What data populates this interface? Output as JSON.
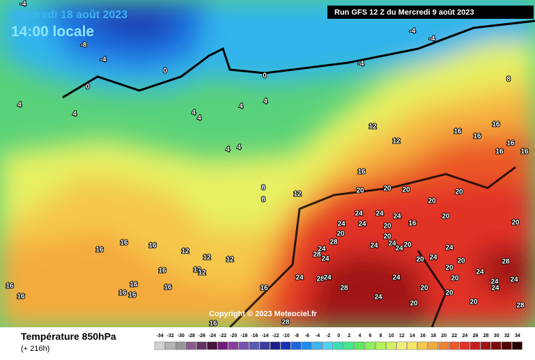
{
  "header": {
    "date": "Vendredi 18 août 2023",
    "time": "14:00 locale",
    "run": "Run GFS 12 Z du Mercredi 9 août 2023"
  },
  "copyright": "Copyright © 2023 Meteociel.fr",
  "legend": {
    "title": "Température 850hPa",
    "subtitle": "(+ 216h)",
    "ticks": [
      "-34",
      "-32",
      "-30",
      "-28",
      "-26",
      "-24",
      "-22",
      "-20",
      "-18",
      "-16",
      "-14",
      "-12",
      "-10",
      "-8",
      "-6",
      "-4",
      "-2",
      "0",
      "2",
      "4",
      "6",
      "8",
      "10",
      "12",
      "14",
      "16",
      "18",
      "20",
      "22",
      "24",
      "26",
      "28",
      "30",
      "32",
      "34"
    ],
    "colors": [
      "#d2d2d2",
      "#b4b4b4",
      "#969696",
      "#8c5a8c",
      "#643264",
      "#46143c",
      "#6e1e78",
      "#8c3c9c",
      "#7850b4",
      "#5a5ab4",
      "#3c3ca0",
      "#1e1e8c",
      "#1432b4",
      "#1e64dc",
      "#1e8cf0",
      "#3cb4f5",
      "#50d2f0",
      "#3cdcb4",
      "#46e68c",
      "#5aeb5a",
      "#8cf05a",
      "#b4f05a",
      "#d2f064",
      "#f0f078",
      "#f5e664",
      "#f5c84b",
      "#f5aa3c",
      "#f08232",
      "#eb5a28",
      "#e13228",
      "#c81e1e",
      "#a01414",
      "#780a0a",
      "#500505",
      "#280000"
    ]
  },
  "map": {
    "labels": [
      "-4",
      "-8",
      "-4",
      "0",
      "0",
      "0",
      "-4",
      "-4",
      "-4",
      "8",
      "4",
      "4",
      "4",
      "4",
      "4",
      "4",
      "4",
      "4",
      "8",
      "8",
      "12",
      "12",
      "12",
      "16",
      "16",
      "16",
      "16",
      "16",
      "16",
      "16",
      "20",
      "20",
      "20",
      "20",
      "20",
      "24",
      "24",
      "24",
      "24",
      "24",
      "20",
      "16",
      "20",
      "20",
      "20",
      "20",
      "28",
      "24",
      "24",
      "24",
      "20",
      "24",
      "28",
      "24",
      "24",
      "20",
      "24",
      "28",
      "20",
      "24",
      "28",
      "24",
      "28",
      "24",
      "20",
      "20",
      "24",
      "24",
      "24",
      "20",
      "24",
      "16",
      "16",
      "16",
      "12",
      "12",
      "12",
      "12",
      "12",
      "16",
      "16",
      "16",
      "16",
      "16",
      "16",
      "16",
      "16",
      "20",
      "24",
      "28",
      "20",
      "20",
      "16",
      "28"
    ]
  }
}
